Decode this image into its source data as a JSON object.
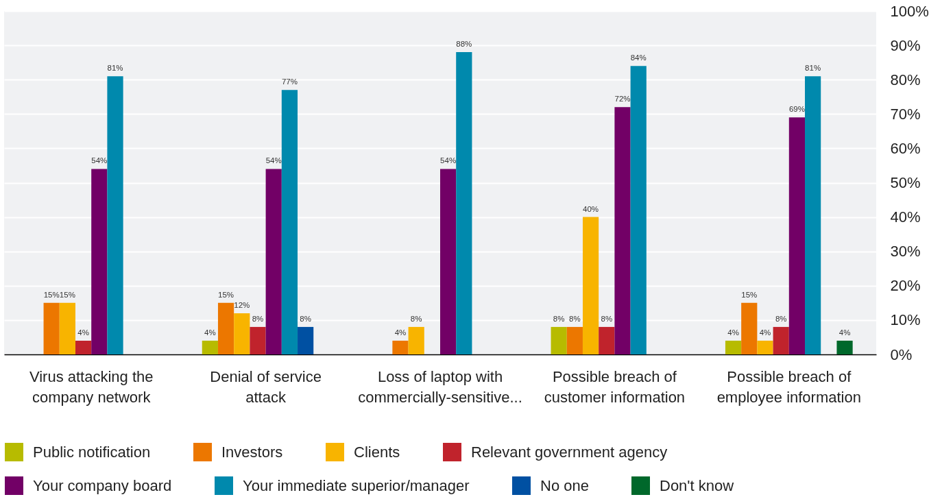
{
  "chart_data": {
    "type": "bar",
    "categories": [
      "Virus attacking the company network",
      "Denial of service attack",
      "Loss of laptop with commercially-sensitive...",
      "Possible breach of customer information",
      "Possible breach of employee information"
    ],
    "series": [
      {
        "name": "Public notification",
        "color": "#b7bb00",
        "values": [
          null,
          4,
          null,
          8,
          4
        ],
        "value_labels": [
          null,
          "4%",
          null,
          "8%",
          "4%"
        ]
      },
      {
        "name": "Investors",
        "color": "#ec7700",
        "values": [
          15,
          15,
          4,
          8,
          15
        ],
        "value_labels": [
          "15%",
          "15%",
          "4%",
          "8%",
          "15%"
        ]
      },
      {
        "name": "Clients",
        "color": "#f8b400",
        "values": [
          15,
          12,
          8,
          40,
          4
        ],
        "value_labels": [
          "15%",
          "12%",
          "8%",
          "40%",
          "4%"
        ]
      },
      {
        "name": "Relevant government agency",
        "color": "#c0232c",
        "values": [
          4,
          8,
          null,
          8,
          8
        ],
        "value_labels": [
          "4%",
          "8%",
          null,
          "8%",
          "8%"
        ]
      },
      {
        "name": "Your company board",
        "color": "#720066",
        "values": [
          54,
          54,
          54,
          72,
          69
        ],
        "value_labels": [
          "54%",
          "54%",
          "54%",
          "72%",
          "69%"
        ]
      },
      {
        "name": "Your immediate superior/manager",
        "color": "#0089ad",
        "values": [
          81,
          77,
          88,
          84,
          81
        ],
        "value_labels": [
          "81%",
          "77%",
          "88%",
          "84%",
          "81%"
        ]
      },
      {
        "name": "No one",
        "color": "#0050a2",
        "values": [
          null,
          8,
          null,
          null,
          null
        ],
        "value_labels": [
          null,
          "8%",
          null,
          null,
          null
        ]
      },
      {
        "name": "Don't know",
        "color": "#00682b",
        "values": [
          null,
          null,
          null,
          null,
          4
        ],
        "value_labels": [
          null,
          null,
          null,
          null,
          "4%"
        ]
      }
    ],
    "ylim": [
      0,
      100
    ],
    "yticks": [
      {
        "value": 0,
        "label": "0%"
      },
      {
        "value": 10,
        "label": "10%"
      },
      {
        "value": 20,
        "label": "20%"
      },
      {
        "value": 30,
        "label": "30%"
      },
      {
        "value": 40,
        "label": "40%"
      },
      {
        "value": 50,
        "label": "50%"
      },
      {
        "value": 60,
        "label": "60%"
      },
      {
        "value": 70,
        "label": "70%"
      },
      {
        "value": 80,
        "label": "80%"
      },
      {
        "value": 90,
        "label": "90%"
      },
      {
        "value": 100,
        "label": "100%"
      }
    ],
    "grid": "y",
    "legend": "bottom"
  }
}
